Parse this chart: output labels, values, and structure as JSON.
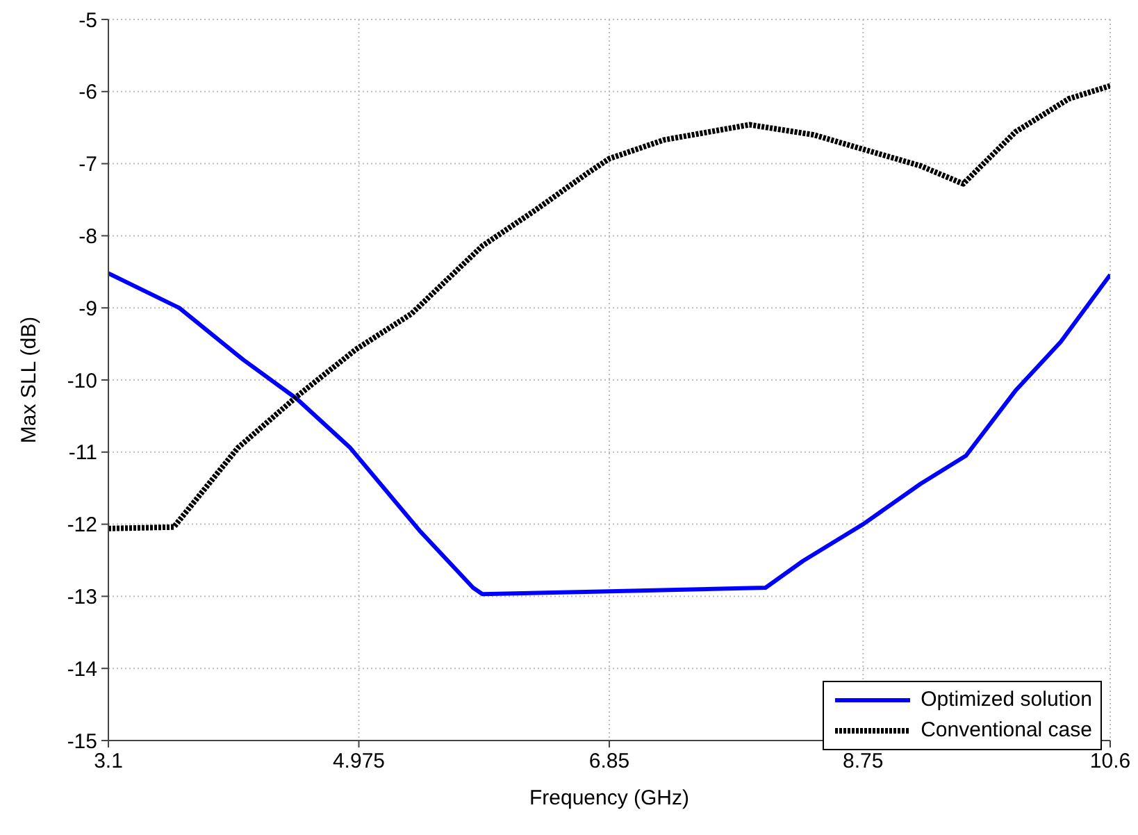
{
  "chart_data": {
    "type": "line",
    "xlabel": "Frequency (GHz)",
    "ylabel": "Max SLL (dB)",
    "xlim": [
      3.1,
      10.6
    ],
    "xticks": [
      3.1,
      4.975,
      6.85,
      8.75,
      10.6
    ],
    "ylim": [
      -15,
      -5
    ],
    "yticks": [
      -15,
      -14,
      -13,
      -12,
      -11,
      -10,
      -9,
      -8,
      -7,
      -6,
      -5
    ],
    "grid": true,
    "legend": "bottom right",
    "marker": "none",
    "series": [
      {
        "name": "Optimized solution",
        "color": "#0000ff",
        "line_style": "solid",
        "x": [
          3.1,
          3.63,
          4.11,
          4.51,
          4.91,
          5.43,
          5.83,
          5.9,
          6.85,
          8.02,
          8.3,
          8.75,
          9.18,
          9.52,
          9.89,
          10.23,
          10.6
        ],
        "values": [
          -8.52,
          -9.0,
          -9.72,
          -10.26,
          -10.94,
          -12.09,
          -12.88,
          -12.97,
          -12.93,
          -12.88,
          -12.51,
          -12.0,
          -11.44,
          -11.05,
          -10.15,
          -9.47,
          -8.54
        ]
      },
      {
        "name": "Conventional case",
        "color": "#000000",
        "line_style": "dotted",
        "x": [
          3.1,
          3.59,
          4.07,
          4.51,
          4.95,
          5.37,
          5.9,
          6.3,
          6.68,
          6.85,
          7.26,
          7.9,
          8.38,
          8.75,
          9.18,
          9.5,
          9.89,
          10.29,
          10.6
        ],
        "values": [
          -12.06,
          -12.04,
          -10.94,
          -10.23,
          -9.58,
          -9.08,
          -8.14,
          -7.64,
          -7.14,
          -6.93,
          -6.67,
          -6.46,
          -6.6,
          -6.8,
          -7.03,
          -7.28,
          -6.56,
          -6.1,
          -5.92
        ]
      }
    ]
  }
}
